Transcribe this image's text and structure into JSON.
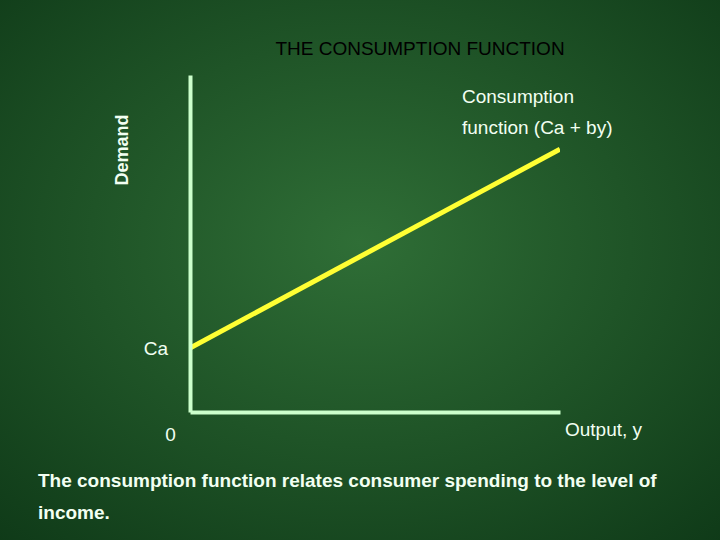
{
  "chart_data": {
    "type": "line",
    "title": "THE CONSUMPTION FUNCTION",
    "x_label": "Output, y",
    "y_label": "Demand",
    "caption": "The consumption function relates consumer spending to the level of income.",
    "x": [
      0,
      10
    ],
    "series": [
      {
        "name": "Consumption function (Ca + by)",
        "color": "#ffff33",
        "values": [
          1.9,
          7.8
        ]
      }
    ],
    "xlim": [
      0,
      10
    ],
    "ylim": [
      0,
      10
    ],
    "xticks": [
      0
    ],
    "yticks": [
      {
        "value": 1.9,
        "label": "Ca"
      }
    ],
    "grid": false
  }
}
